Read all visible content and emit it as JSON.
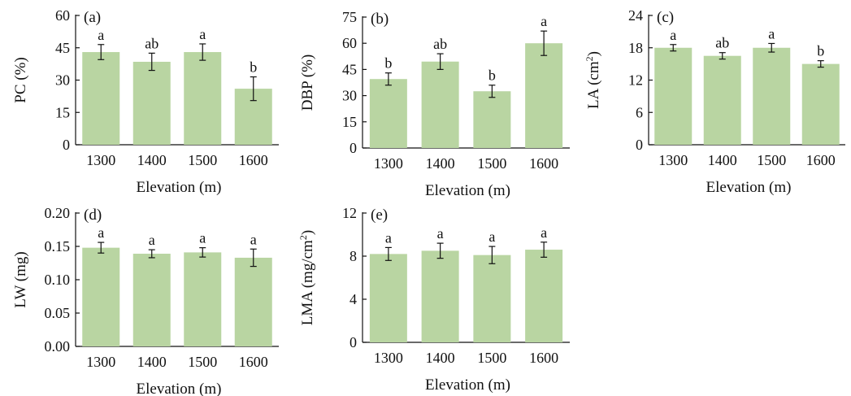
{
  "figure": {
    "bar_color": "#b9d5a2",
    "axis_color": "#111111",
    "text_color": "#111111"
  },
  "chart_data": [
    {
      "type": "bar",
      "panel_label": "(a)",
      "categories": [
        "1300",
        "1400",
        "1500",
        "1600"
      ],
      "values": [
        43,
        38.5,
        43,
        26
      ],
      "errors": [
        3.5,
        4,
        3.8,
        5.5
      ],
      "significance": [
        "a",
        "ab",
        "a",
        "b"
      ],
      "xlabel": "Elevation (m)",
      "ylabel": "PC (%)",
      "ylim": [
        0,
        60
      ],
      "yticks": [
        "0",
        "15",
        "30",
        "45",
        "60"
      ]
    },
    {
      "type": "bar",
      "panel_label": "(b)",
      "categories": [
        "1300",
        "1400",
        "1500",
        "1600"
      ],
      "values": [
        39.5,
        49.5,
        32.5,
        60
      ],
      "errors": [
        3.5,
        4.5,
        3.5,
        7
      ],
      "significance": [
        "b",
        "ab",
        "b",
        "a"
      ],
      "xlabel": "Elevation (m)",
      "ylabel": "DBP (%)",
      "ylim": [
        0,
        75
      ],
      "yticks": [
        "0",
        "15",
        "30",
        "45",
        "60",
        "75"
      ]
    },
    {
      "type": "bar",
      "panel_label": "(c)",
      "categories": [
        "1300",
        "1400",
        "1500",
        "1600"
      ],
      "values": [
        18,
        16.5,
        18,
        15
      ],
      "errors": [
        0.6,
        0.6,
        0.8,
        0.6
      ],
      "significance": [
        "a",
        "ab",
        "a",
        "b"
      ],
      "xlabel": "Elevation (m)",
      "ylabel": "LA (cm",
      "ylabel_sup": "2",
      "ylabel_end": ")",
      "ylim": [
        0,
        24
      ],
      "yticks": [
        "0",
        "6",
        "12",
        "18",
        "24"
      ]
    },
    {
      "type": "bar",
      "panel_label": "(d)",
      "categories": [
        "1300",
        "1400",
        "1500",
        "1600"
      ],
      "values": [
        0.148,
        0.139,
        0.141,
        0.133
      ],
      "errors": [
        0.008,
        0.006,
        0.007,
        0.013
      ],
      "significance": [
        "a",
        "a",
        "a",
        "a"
      ],
      "xlabel": "Elevation (m)",
      "ylabel": "LW (mg)",
      "ylim": [
        0,
        0.2
      ],
      "yticks": [
        "0.00",
        "0.05",
        "0.10",
        "0.15",
        "0.20"
      ]
    },
    {
      "type": "bar",
      "panel_label": "(e)",
      "categories": [
        "1300",
        "1400",
        "1500",
        "1600"
      ],
      "values": [
        8.2,
        8.5,
        8.1,
        8.6
      ],
      "errors": [
        0.6,
        0.7,
        0.8,
        0.7
      ],
      "significance": [
        "a",
        "a",
        "a",
        "a"
      ],
      "xlabel": "Elevation (m)",
      "ylabel": "LMA (mg/cm",
      "ylabel_sup": "2",
      "ylabel_end": ")",
      "ylim": [
        0,
        12
      ],
      "yticks": [
        "0",
        "4",
        "8",
        "12"
      ]
    }
  ]
}
